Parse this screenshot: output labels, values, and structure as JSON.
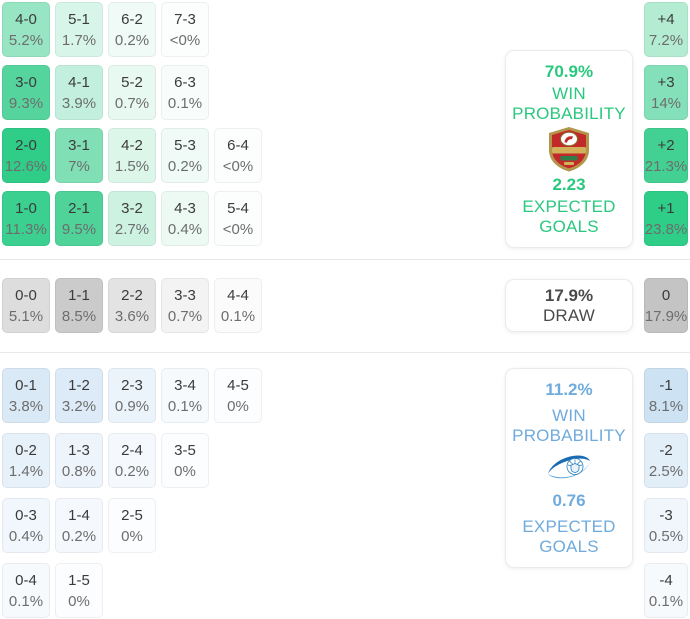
{
  "colors": {
    "accent_green": "#2ac87e",
    "accent_blue": "#6fabdc",
    "draw_text": "#4b4b4b",
    "strong_green": "#2fce88",
    "strong_gray": "#c4c4c4",
    "strong_blue": "#cde2f3"
  },
  "win_section": {
    "grid_rows": [
      [
        {
          "score": "4-0",
          "pct": "5.2%",
          "bg": "#98e5c3"
        },
        {
          "score": "5-1",
          "pct": "1.7%",
          "bg": "#d8f5e9"
        },
        {
          "score": "6-2",
          "pct": "0.2%",
          "bg": "#f0fbf7"
        },
        {
          "score": "7-3",
          "pct": "<0%",
          "bg": "#fcfdfd"
        }
      ],
      [
        {
          "score": "3-0",
          "pct": "9.3%",
          "bg": "#55d59d"
        },
        {
          "score": "4-1",
          "pct": "3.9%",
          "bg": "#c3f0de"
        },
        {
          "score": "5-2",
          "pct": "0.7%",
          "bg": "#e8f9f1"
        },
        {
          "score": "6-3",
          "pct": "0.1%",
          "bg": "#f8fdfb"
        }
      ],
      [
        {
          "score": "2-0",
          "pct": "12.6%",
          "bg": "#30cd89"
        },
        {
          "score": "3-1",
          "pct": "7%",
          "bg": "#81dfb6"
        },
        {
          "score": "4-2",
          "pct": "1.5%",
          "bg": "#dcf6ea"
        },
        {
          "score": "5-3",
          "pct": "0.2%",
          "bg": "#f0fbf7"
        },
        {
          "score": "6-4",
          "pct": "<0%",
          "bg": "#fcfdfd"
        }
      ],
      [
        {
          "score": "1-0",
          "pct": "11.3%",
          "bg": "#3bd090"
        },
        {
          "score": "2-1",
          "pct": "9.5%",
          "bg": "#4fd399"
        },
        {
          "score": "3-2",
          "pct": "2.7%",
          "bg": "#cdf2e2"
        },
        {
          "score": "4-3",
          "pct": "0.4%",
          "bg": "#edfaf4"
        },
        {
          "score": "5-4",
          "pct": "<0%",
          "bg": "#fcfdfd"
        }
      ]
    ],
    "diff_cells": [
      {
        "score": "+4",
        "pct": "7.2%",
        "bg": "#b3ecd1"
      },
      {
        "score": "+3",
        "pct": "14%",
        "bg": "#84e0b8"
      },
      {
        "score": "+2",
        "pct": "21.3%",
        "bg": "#43d193"
      },
      {
        "score": "+1",
        "pct": "23.8%",
        "bg": "#2fce88"
      }
    ],
    "panel": {
      "probability": "70.9%",
      "probability_label": "WIN PROBABILITY",
      "team_logo": "shabab-al-ahli-crest",
      "expected_goals": "2.23",
      "expected_goals_label": "EXPECTED GOALS"
    }
  },
  "draw_section": {
    "grid_rows": [
      [
        {
          "score": "0-0",
          "pct": "5.1%",
          "bg": "#dddddd"
        },
        {
          "score": "1-1",
          "pct": "8.5%",
          "bg": "#cbcbcb"
        },
        {
          "score": "2-2",
          "pct": "3.6%",
          "bg": "#e3e3e3"
        },
        {
          "score": "3-3",
          "pct": "0.7%",
          "bg": "#f3f3f3"
        },
        {
          "score": "4-4",
          "pct": "0.1%",
          "bg": "#fbfbfb"
        }
      ]
    ],
    "diff_cells": [
      {
        "score": "0",
        "pct": "17.9%",
        "bg": "#c4c4c4"
      }
    ],
    "panel": {
      "probability": "17.9%",
      "probability_label": "DRAW"
    }
  },
  "lose_section": {
    "grid_rows": [
      [
        {
          "score": "0-1",
          "pct": "3.8%",
          "bg": "#d9e9f6"
        },
        {
          "score": "1-2",
          "pct": "3.2%",
          "bg": "#dcebf7"
        },
        {
          "score": "2-3",
          "pct": "0.9%",
          "bg": "#ecf4fb"
        },
        {
          "score": "3-4",
          "pct": "0.1%",
          "bg": "#f7fafd"
        },
        {
          "score": "4-5",
          "pct": "0%",
          "bg": "#fcfdfe"
        }
      ],
      [
        {
          "score": "0-2",
          "pct": "1.4%",
          "bg": "#e7f1f9"
        },
        {
          "score": "1-3",
          "pct": "0.8%",
          "bg": "#edf4fb"
        },
        {
          "score": "2-4",
          "pct": "0.2%",
          "bg": "#f5f9fd"
        },
        {
          "score": "3-5",
          "pct": "0%",
          "bg": "#fcfdfe"
        }
      ],
      [
        {
          "score": "0-3",
          "pct": "0.4%",
          "bg": "#f1f7fc"
        },
        {
          "score": "1-4",
          "pct": "0.2%",
          "bg": "#f5f9fd"
        },
        {
          "score": "2-5",
          "pct": "0%",
          "bg": "#fcfdfe"
        }
      ],
      [
        {
          "score": "0-4",
          "pct": "0.1%",
          "bg": "#f7fafd"
        },
        {
          "score": "1-5",
          "pct": "0%",
          "bg": "#fcfdfe"
        }
      ]
    ],
    "diff_cells": [
      {
        "score": "-1",
        "pct": "8.1%",
        "bg": "#cde2f3"
      },
      {
        "score": "-2",
        "pct": "2.5%",
        "bg": "#e2eef8"
      },
      {
        "score": "-3",
        "pct": "0.5%",
        "bg": "#f0f6fb"
      },
      {
        "score": "-4",
        "pct": "0.1%",
        "bg": "#f7fafd"
      }
    ],
    "panel": {
      "probability": "11.2%",
      "probability_label": "WIN PROBABILITY",
      "team_logo": "blue-swoosh-emblem",
      "expected_goals": "0.76",
      "expected_goals_label": "EXPECTED GOALS"
    }
  }
}
